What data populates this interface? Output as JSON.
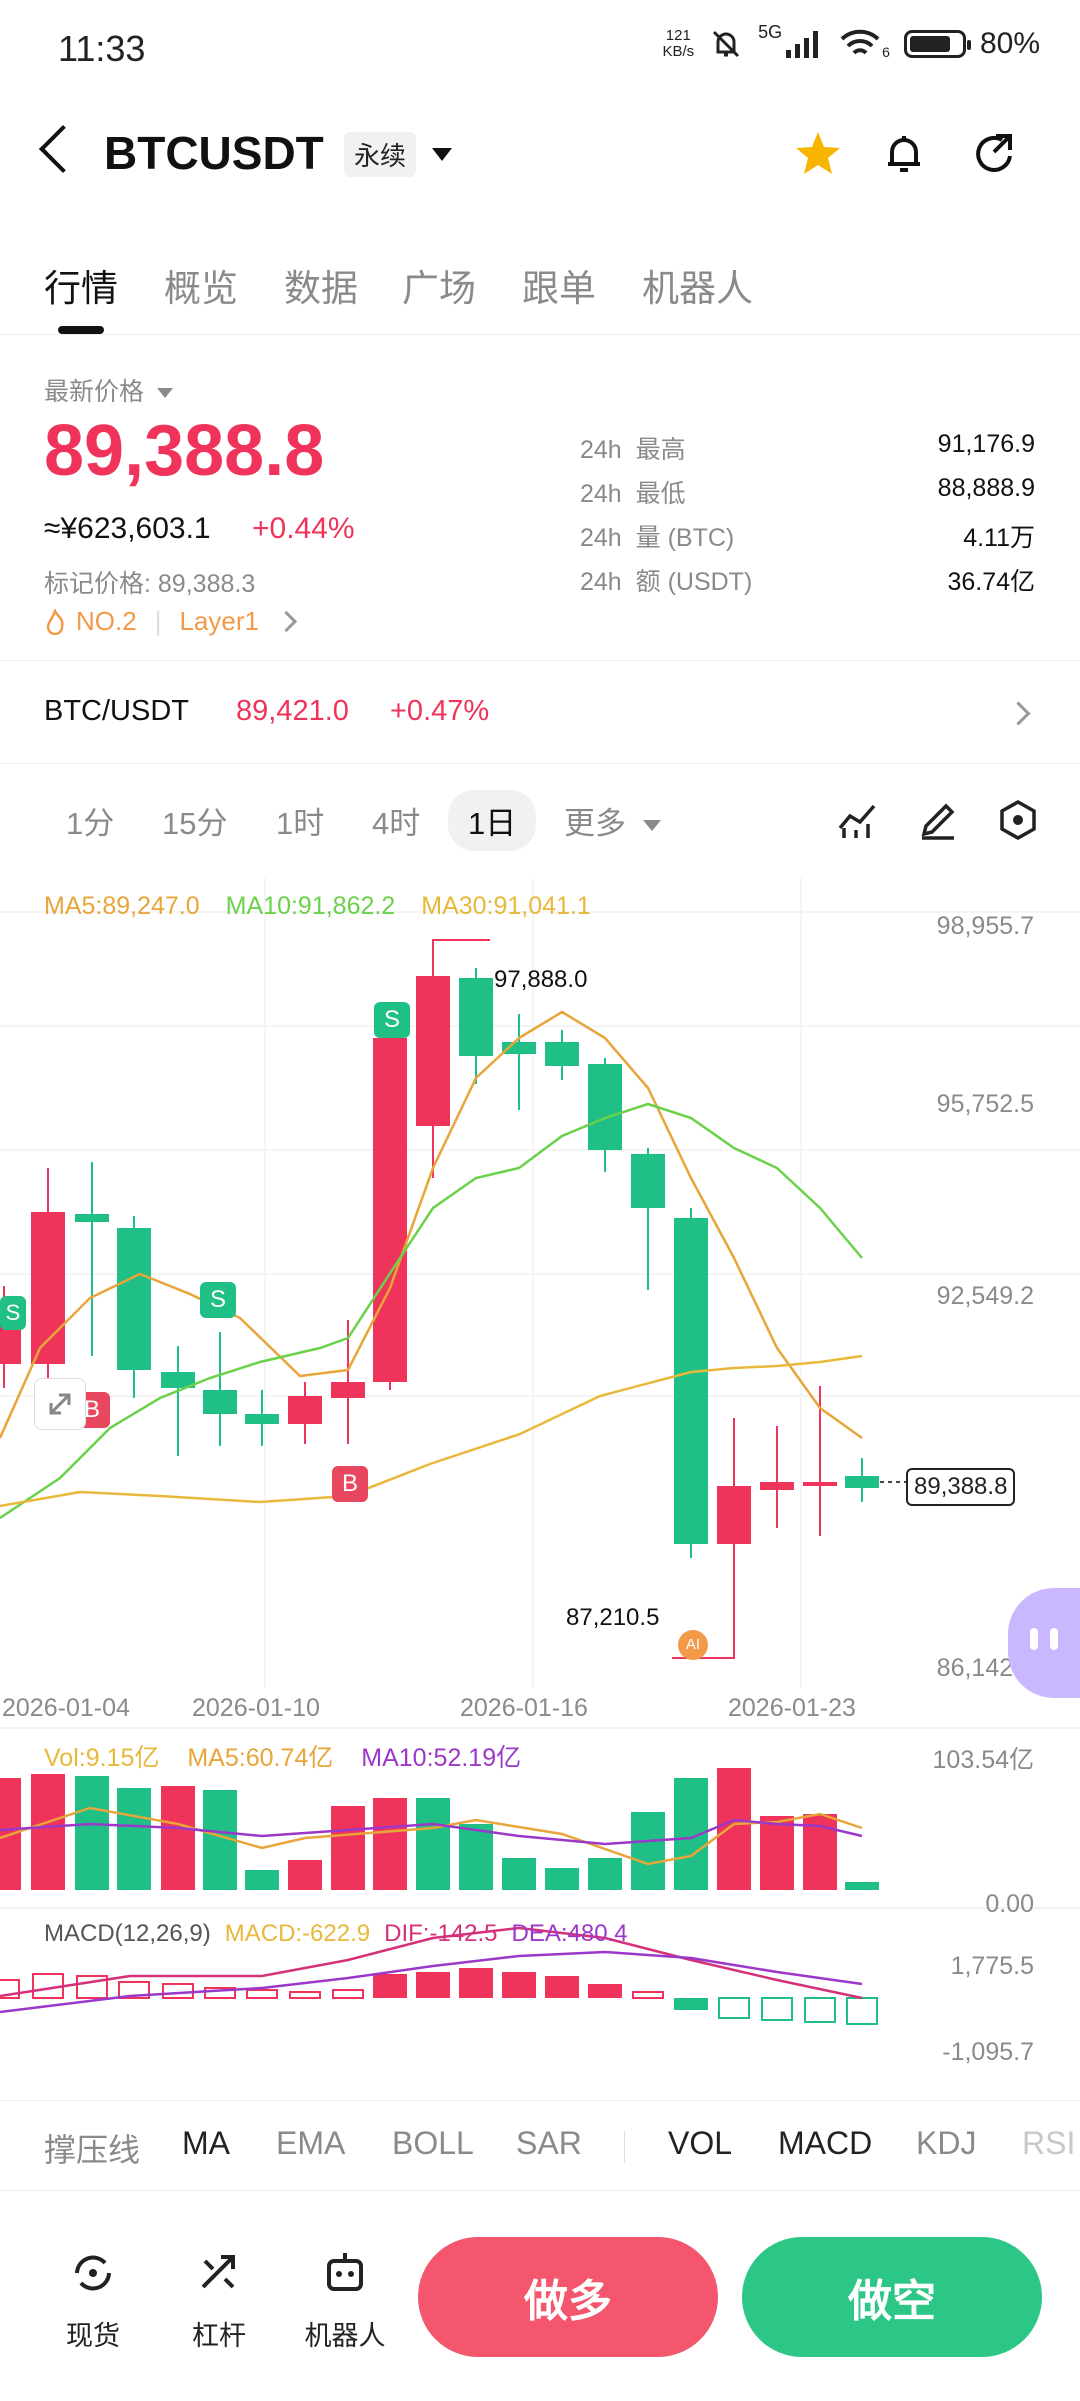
{
  "status_bar": {
    "time": "11:33",
    "net_speed_value": "121",
    "net_speed_unit": "KB/s",
    "network": "5G",
    "wifi_label": "6",
    "battery": "80%",
    "battery_level": 0.8
  },
  "header": {
    "symbol": "BTCUSDT",
    "contract_tag": "永续",
    "favorite": true
  },
  "tabs": [
    "行情",
    "概览",
    "数据",
    "广场",
    "跟单",
    "机器人"
  ],
  "price": {
    "label": "最新价格",
    "last": "89,388.8",
    "cny": "≈¥623,603.1",
    "change": "+0.44%",
    "mark_label": "标记价格:",
    "mark_price": "89,388.3",
    "rank": "NO.2",
    "category": "Layer1",
    "stats": [
      {
        "period": "24h",
        "label": "最高",
        "value": "91,176.9"
      },
      {
        "period": "24h",
        "label": "最低",
        "value": "88,888.9"
      },
      {
        "period": "24h",
        "label": "量 (BTC)",
        "value": "4.11万"
      },
      {
        "period": "24h",
        "label": "额 (USDT)",
        "value": "36.74亿"
      }
    ]
  },
  "spot_pair": {
    "name": "BTC/USDT",
    "price": "89,421.0",
    "change": "+0.47%"
  },
  "intervals": [
    "1分",
    "15分",
    "1时",
    "4时",
    "1日",
    "更多"
  ],
  "active_interval": "1日",
  "ma_legend": {
    "ma5": "MA5:89,247.0",
    "ma10": "MA10:91,862.2",
    "ma30": "MA30:91,041.1"
  },
  "price_axis": [
    "98,955.7",
    "95,752.5",
    "92,549.2",
    "89,388.8",
    "86,142.7"
  ],
  "date_axis": [
    "2026-01-04",
    "2026-01-10",
    "2026-01-16",
    "2026-01-23"
  ],
  "annotations": {
    "high": "97,888.0",
    "low": "87,210.5",
    "buy_mark": "B",
    "sell_mark": "S",
    "ai": "AI"
  },
  "volume_legend": {
    "vol": "Vol:9.15亿",
    "ma5": "MA5:60.74亿",
    "ma10": "MA10:52.19亿"
  },
  "volume_axis": [
    "103.54亿",
    "0.00"
  ],
  "macd_legend": {
    "title": "MACD(12,26,9)",
    "macd": "MACD:-622.9",
    "dif": "DIF:-142.5",
    "dea": "DEA:480.4"
  },
  "macd_axis": [
    "1,775.5",
    "-1,095.7"
  ],
  "indicators": [
    "撑压线",
    "MA",
    "EMA",
    "BOLL",
    "SAR",
    "VOL",
    "MACD",
    "KDJ",
    "RSI"
  ],
  "bottom_nav": [
    "现货",
    "杠杆",
    "机器人"
  ],
  "actions": {
    "long": "做多",
    "short": "做空"
  },
  "colors": {
    "up": "#f0335a",
    "down": "#1fbf85",
    "ma5": "#e8a53a",
    "ma10": "#6ad14b",
    "ma30": "#e8b83a",
    "macd_dif": "#d4317a",
    "macd_dea": "#9c38c9",
    "long_btn": "#f4566e",
    "short_btn": "#2cc686"
  }
}
